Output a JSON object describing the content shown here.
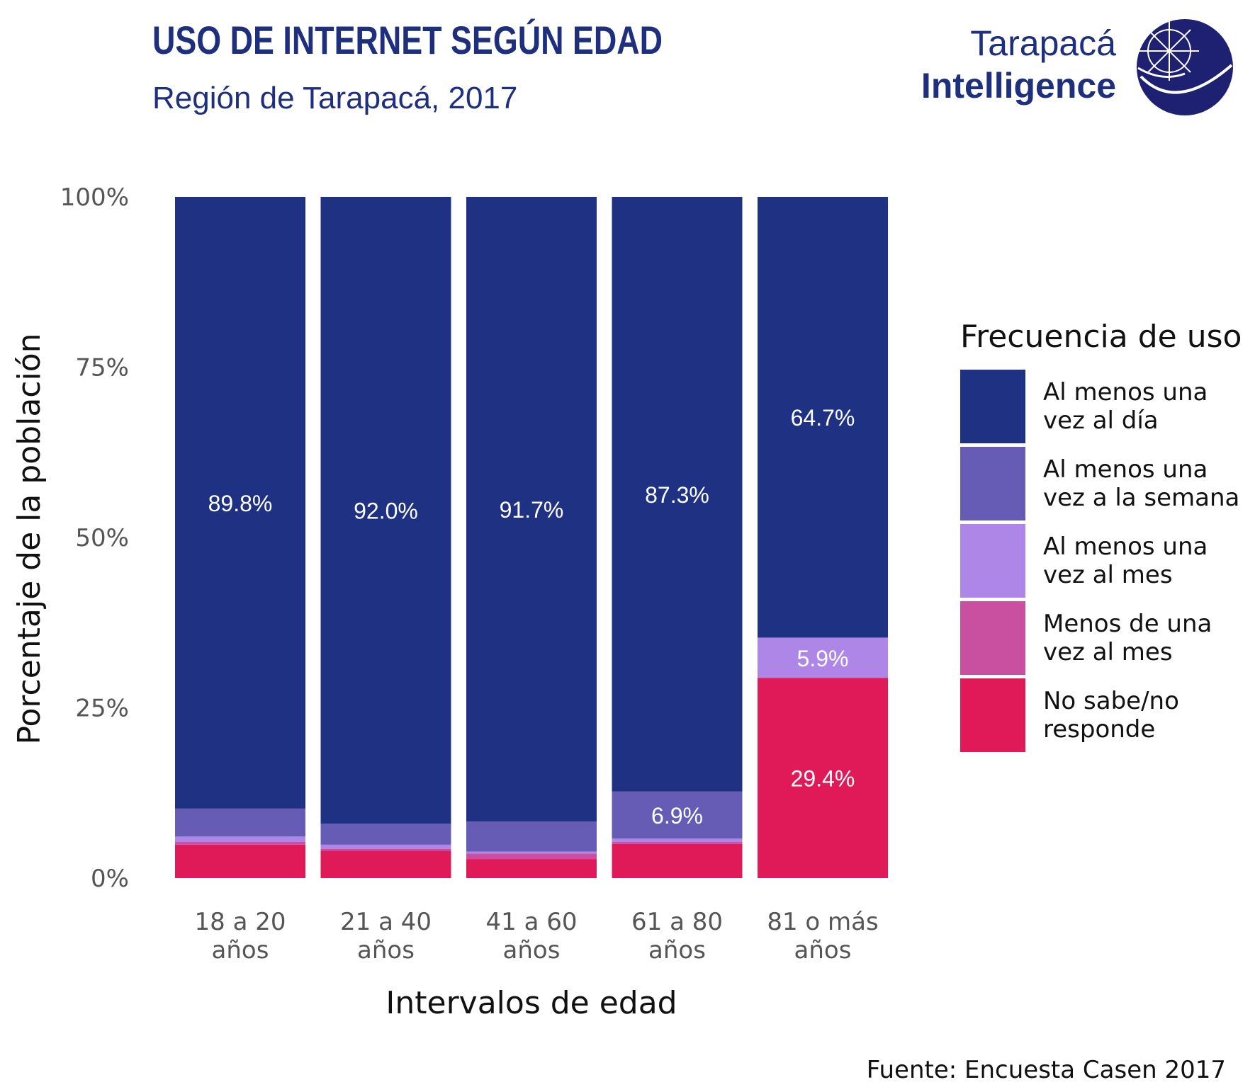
{
  "header": {
    "title": "USO DE INTERNET SEGÚN EDAD",
    "subtitle": "Región de Tarapacá, 2017"
  },
  "logo": {
    "line1": "Tarapacá",
    "line2": "Intelligence"
  },
  "source": "Fuente: Encuesta Casen 2017",
  "colors": {
    "brand": "#1e2f7e",
    "text_axis": "#555555",
    "text_dark": "#111111"
  },
  "chart_data": {
    "type": "bar",
    "stacked": true,
    "xlabel": "Intervalos de edad",
    "ylabel": "Porcentaje de la población",
    "ylim": [
      0,
      100
    ],
    "yticks": [
      0,
      25,
      50,
      75,
      100
    ],
    "ytick_labels": [
      "0%",
      "25%",
      "50%",
      "75%",
      "100%"
    ],
    "grid": false,
    "categories": [
      [
        "18 a 20",
        "años"
      ],
      [
        "21 a 40",
        "años"
      ],
      [
        "41 a 60",
        "años"
      ],
      [
        "61 a 80",
        "años"
      ],
      [
        "81 o más",
        "años"
      ]
    ],
    "legend": {
      "title": "Frecuencia de uso",
      "position": "right",
      "entries": [
        [
          "Al menos una",
          "vez al día"
        ],
        [
          "Al menos una",
          "vez a la semana"
        ],
        [
          "Al menos una",
          "vez al mes"
        ],
        [
          "Menos de una",
          "vez al mes"
        ],
        [
          "No sabe/no",
          "responde"
        ]
      ]
    },
    "series": [
      {
        "name": "No sabe/no responde",
        "color": "#e01a58",
        "values": [
          4.9,
          4.0,
          2.8,
          5.0,
          29.4
        ],
        "labels": [
          "",
          "",
          "",
          "",
          "29.4%"
        ]
      },
      {
        "name": "Menos de una vez al mes",
        "color": "#c94fa0",
        "values": [
          0.4,
          0.3,
          0.8,
          0.3,
          0.0
        ],
        "labels": [
          "",
          "",
          "",
          "",
          ""
        ]
      },
      {
        "name": "Al menos una vez al mes",
        "color": "#ae86e8",
        "values": [
          0.8,
          0.6,
          0.3,
          0.5,
          5.9
        ],
        "labels": [
          "",
          "",
          "",
          "",
          "5.9%"
        ]
      },
      {
        "name": "Al menos una vez a la semana",
        "color": "#665cb6",
        "values": [
          4.1,
          3.1,
          4.4,
          6.9,
          0.0
        ],
        "labels": [
          "",
          "",
          "",
          "6.9%",
          ""
        ]
      },
      {
        "name": "Al menos una vez al día",
        "color": "#1e3183",
        "values": [
          89.8,
          92.0,
          91.7,
          87.3,
          64.7
        ],
        "labels": [
          "89.8%",
          "92.0%",
          "91.7%",
          "87.3%",
          "64.7%"
        ]
      }
    ]
  }
}
